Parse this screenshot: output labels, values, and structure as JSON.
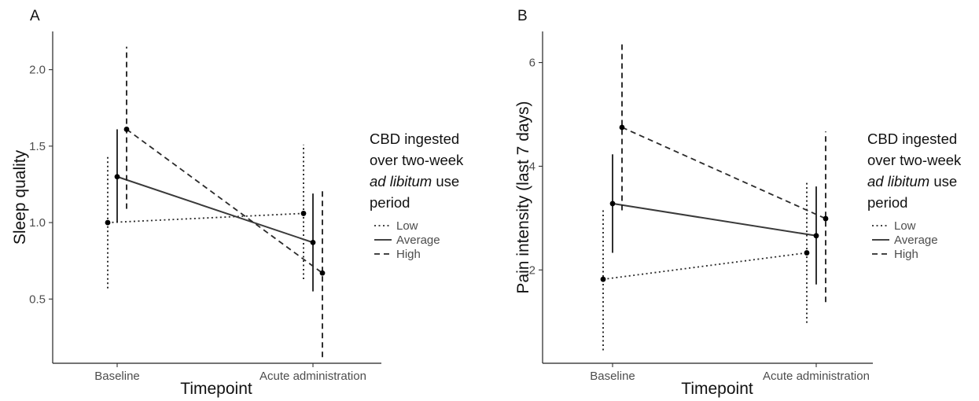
{
  "chart_data": [
    {
      "panel": "A",
      "type": "line",
      "categories": [
        "Baseline",
        "Acute administration"
      ],
      "xlabel": "Timepoint",
      "ylabel": "Sleep quality",
      "ylim": [
        0.08,
        2.25
      ],
      "yticks": [
        0.5,
        1.0,
        1.5,
        2.0
      ],
      "ytick_labels": [
        "0.5",
        "1.0",
        "1.5",
        "2.0"
      ],
      "grid": false,
      "legend": {
        "title_lines": [
          "CBD ingested",
          "over two-week",
          "|ad libitum| use",
          "period"
        ],
        "placement": "right",
        "entries": [
          "Low",
          "Average",
          "High"
        ]
      },
      "series": [
        {
          "name": "Low",
          "dash": "dotted",
          "values": [
            1.0,
            1.06
          ],
          "lower": [
            0.57,
            0.63
          ],
          "upper": [
            1.44,
            1.51
          ]
        },
        {
          "name": "Average",
          "dash": "solid",
          "values": [
            1.3,
            0.87
          ],
          "lower": [
            1.0,
            0.55
          ],
          "upper": [
            1.61,
            1.19
          ]
        },
        {
          "name": "High",
          "dash": "dashed",
          "values": [
            1.61,
            0.67
          ],
          "lower": [
            1.09,
            0.12
          ],
          "upper": [
            2.15,
            1.23
          ]
        }
      ]
    },
    {
      "panel": "B",
      "type": "line",
      "categories": [
        "Baseline",
        "Acute administration"
      ],
      "xlabel": "Timepoint",
      "ylabel": "Pain intensity (last 7 days)",
      "ylim": [
        0.2,
        6.6
      ],
      "yticks": [
        2,
        4,
        6
      ],
      "ytick_labels": [
        "2",
        "4",
        "6"
      ],
      "grid": false,
      "legend": {
        "title_lines": [
          "CBD ingested",
          "over two-week",
          "|ad libitum| use",
          "period"
        ],
        "placement": "right",
        "entries": [
          "Low",
          "Average",
          "High"
        ]
      },
      "series": [
        {
          "name": "Low",
          "dash": "dotted",
          "values": [
            1.82,
            2.33
          ],
          "lower": [
            0.45,
            0.98
          ],
          "upper": [
            3.18,
            3.68
          ]
        },
        {
          "name": "Average",
          "dash": "solid",
          "values": [
            3.28,
            2.66
          ],
          "lower": [
            2.33,
            1.72
          ],
          "upper": [
            4.23,
            3.61
          ]
        },
        {
          "name": "High",
          "dash": "dashed",
          "values": [
            4.75,
            2.99
          ],
          "lower": [
            3.15,
            1.38
          ],
          "upper": [
            6.42,
            4.67
          ]
        }
      ]
    }
  ]
}
